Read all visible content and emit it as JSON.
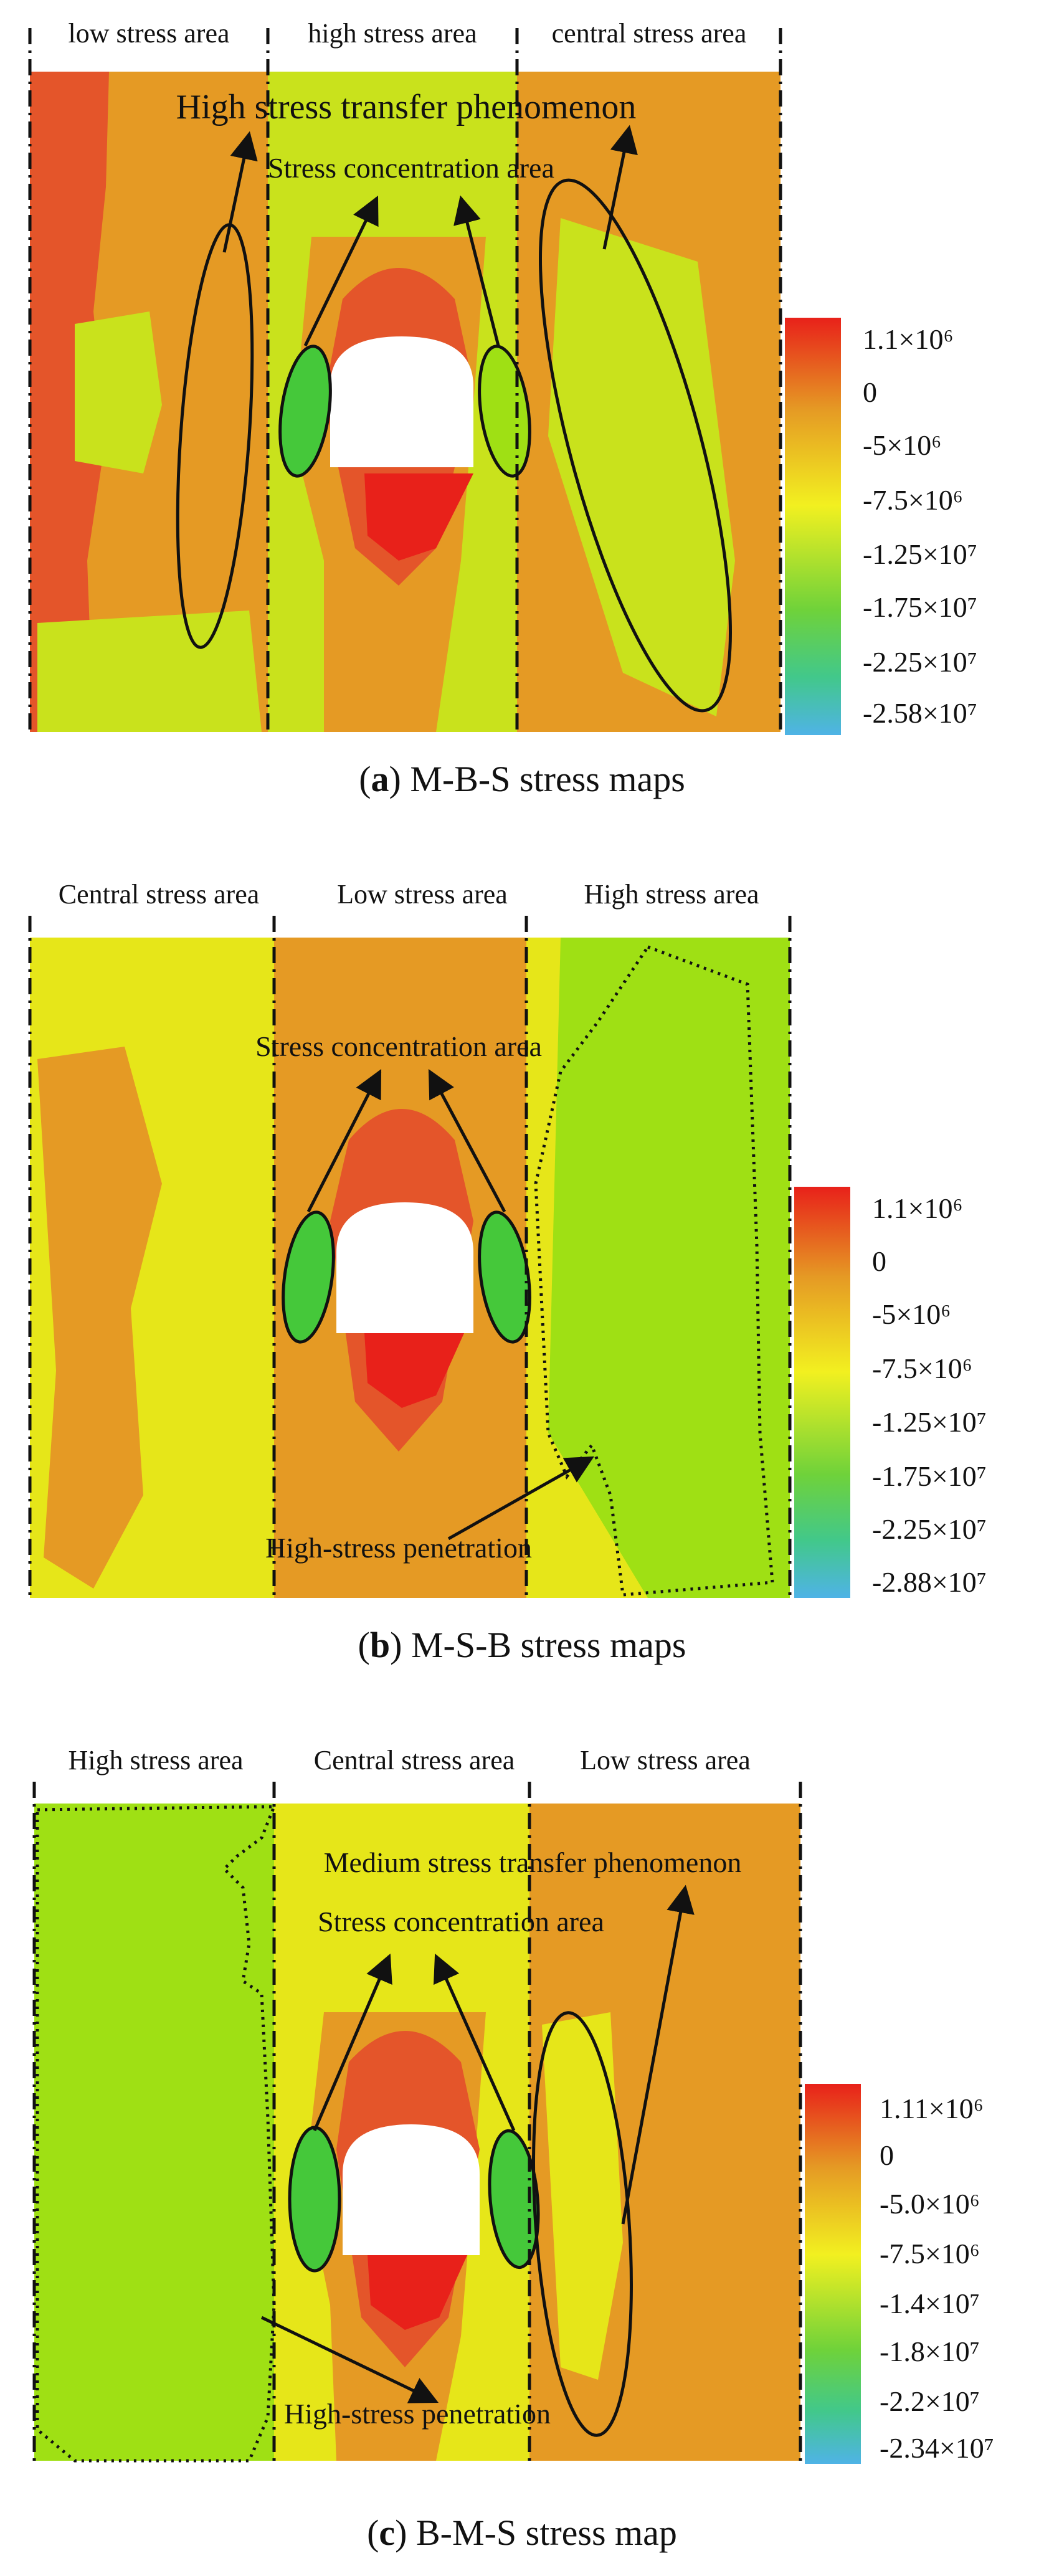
{
  "panels": [
    {
      "id": "a",
      "zones": [
        "low stress area",
        "high stress area",
        "central stress area"
      ],
      "annotations": [
        "High stress transfer phenomenon",
        "Stress concentration area"
      ],
      "colorbar_labels": [
        "1.1×10⁶",
        "0",
        "-5×10⁶",
        "-7.5×10⁶",
        "-1.25×10⁷",
        "-1.75×10⁷",
        "-2.25×10⁷",
        "-2.58×10⁷"
      ],
      "caption_letter": "a",
      "caption_text": "M-B-S stress maps"
    },
    {
      "id": "b",
      "zones": [
        "Central stress area",
        "Low stress area",
        "High stress area"
      ],
      "annotations": [
        "Stress concentration area",
        "High-stress penetration"
      ],
      "colorbar_labels": [
        "1.1×10⁶",
        "0",
        "-5×10⁶",
        "-7.5×10⁶",
        "-1.25×10⁷",
        "-1.75×10⁷",
        "-2.25×10⁷",
        "-2.88×10⁷"
      ],
      "caption_letter": "b",
      "caption_text": "M-S-B stress maps"
    },
    {
      "id": "c",
      "zones": [
        "High stress area",
        "Central stress area",
        "Low stress area"
      ],
      "annotations": [
        "Medium stress transfer phenomenon",
        "Stress concentration area",
        "High-stress penetration"
      ],
      "colorbar_labels": [
        "1.11×10⁶",
        "0",
        "-5.0×10⁶",
        "-7.5×10⁶",
        "-1.4×10⁷",
        "-1.8×10⁷",
        "-2.2×10⁷",
        "-2.34×10⁷"
      ],
      "caption_letter": "c",
      "caption_text": "B-M-S stress map"
    }
  ],
  "colors": {
    "red": "#e8211a",
    "red_orange": "#e4552a",
    "orange": "#e59a24",
    "yellow": "#e6e619",
    "yellow_green": "#c9e21c",
    "light_green": "#9fe014",
    "green": "#45c83a",
    "teal": "#3fc6a3",
    "blue": "#4fb3e6"
  }
}
